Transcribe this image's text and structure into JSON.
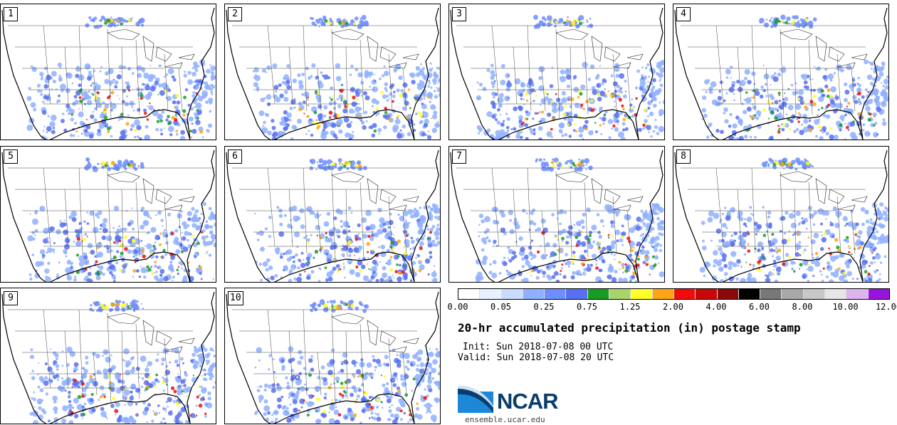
{
  "panels": [
    {
      "label": "1"
    },
    {
      "label": "2"
    },
    {
      "label": "3"
    },
    {
      "label": "4"
    },
    {
      "label": "5"
    },
    {
      "label": "6"
    },
    {
      "label": "7"
    },
    {
      "label": "8"
    },
    {
      "label": "9"
    },
    {
      "label": "10"
    }
  ],
  "legend": {
    "colors": [
      "#ffffff",
      "#e8f1ff",
      "#c8dcff",
      "#8fb0ff",
      "#6d8eff",
      "#5870f0",
      "#189c24",
      "#a8d46c",
      "#ffff28",
      "#ffa414",
      "#f00c0c",
      "#c80808",
      "#8c0a0a",
      "#000000",
      "#787878",
      "#a8a8a8",
      "#c8c8c8",
      "#e6e6e6",
      "#dcb4f0",
      "#9614dc"
    ],
    "tick_labels": [
      "0.00",
      "0.05",
      "0.25",
      "0.75",
      "1.25",
      "2.00",
      "4.00",
      "6.00",
      "8.00",
      "10.00",
      "12.00"
    ]
  },
  "title": "20-hr accumulated precipitation (in) postage stamp",
  "init": "Init: Sun 2018-07-08 00 UTC",
  "valid": "Valid: Sun 2018-07-08 20 UTC",
  "logo": {
    "text": "NCAR",
    "colors": {
      "blue": "#0a3d6b",
      "light": "#1e88d8"
    }
  },
  "site": "ensemble.ucar.edu"
}
